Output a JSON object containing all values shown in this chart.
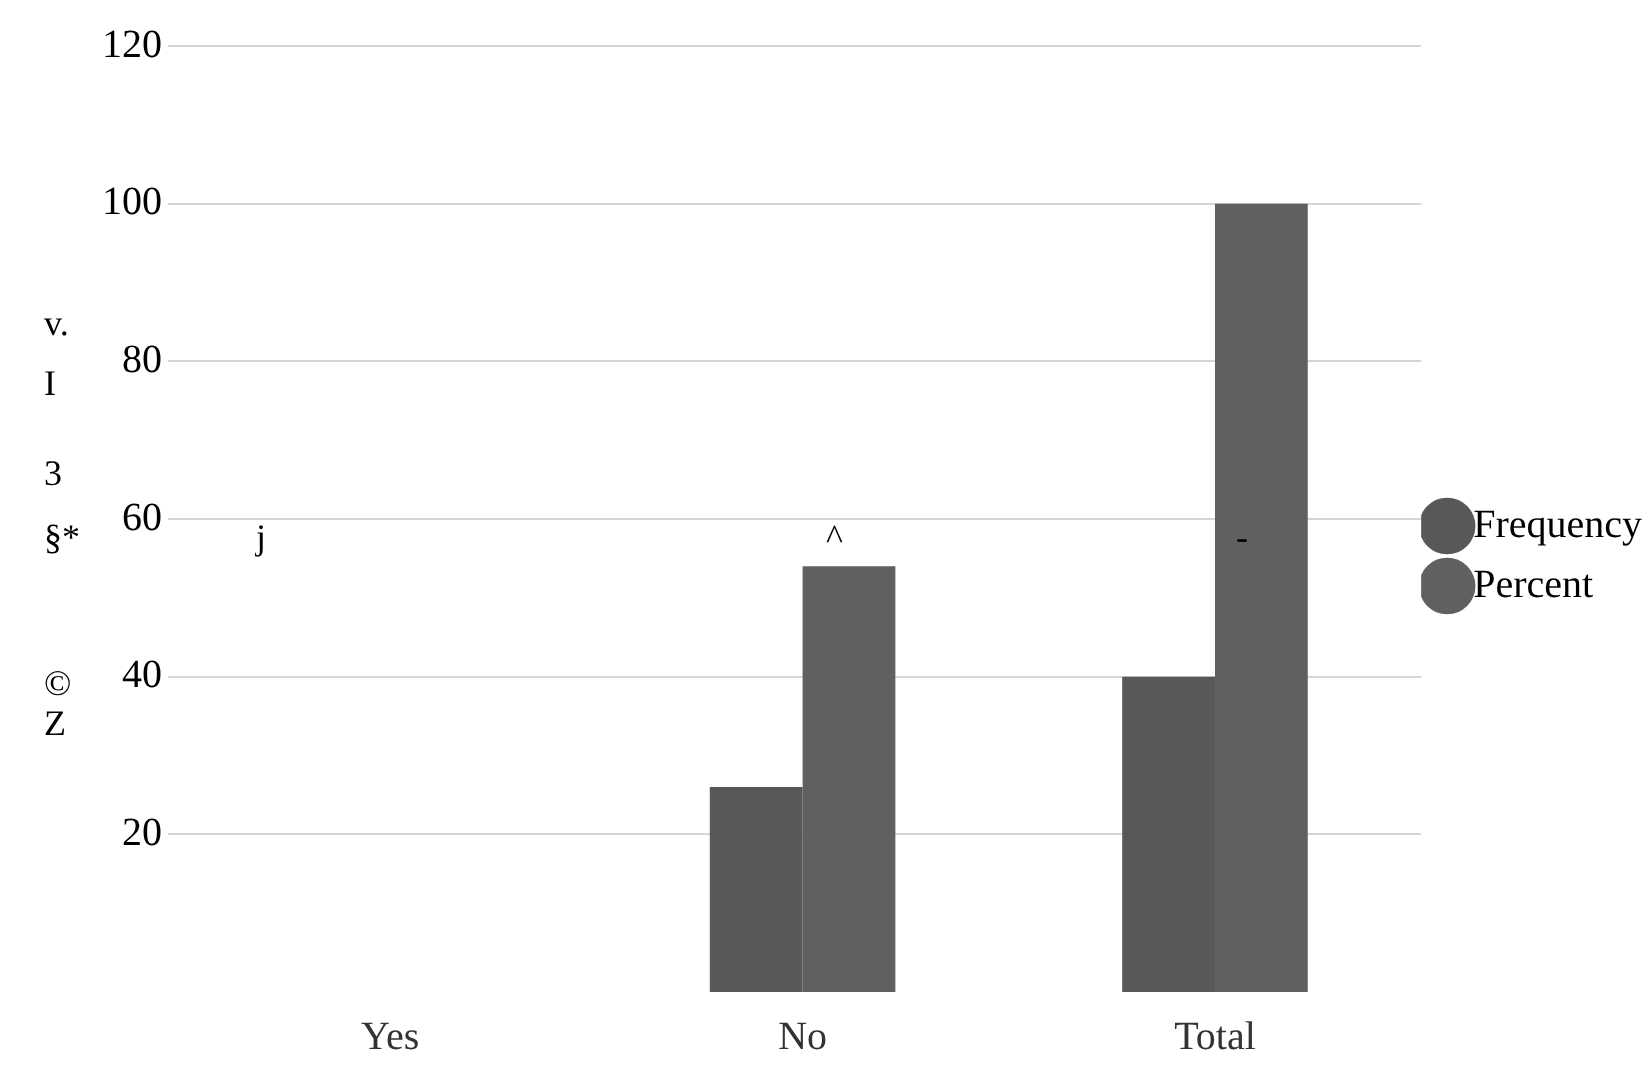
{
  "chart_data": {
    "type": "bar",
    "categories": [
      "Yes",
      "No",
      "Total"
    ],
    "series": [
      {
        "name": "Frequency",
        "color": "#585858",
        "values": [
          null,
          26,
          40
        ]
      },
      {
        "name": "Percent",
        "color": "#606060",
        "values": [
          null,
          54,
          100
        ]
      }
    ],
    "ylim": [
      0,
      120
    ],
    "yticks": [
      20,
      40,
      60,
      80,
      100,
      120
    ],
    "grid": "y",
    "legend": "right",
    "annotations": [
      "v.",
      "I",
      "3",
      "§*",
      "©",
      "Z",
      "j",
      "^",
      "-"
    ]
  }
}
